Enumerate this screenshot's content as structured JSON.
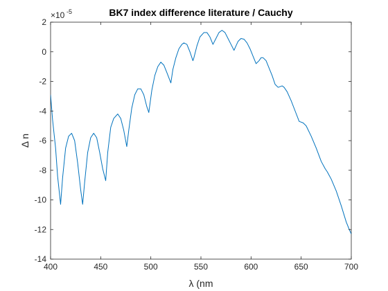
{
  "chart_data": {
    "type": "line",
    "title": "BK7 index difference literature / Cauchy",
    "xlabel": "λ (nm",
    "ylabel": "Δ n",
    "y_exponent": "-5",
    "xlim": [
      400,
      700
    ],
    "ylim": [
      -14,
      2
    ],
    "xticks": [
      "400",
      "450",
      "500",
      "550",
      "600",
      "650",
      "700"
    ],
    "yticks": [
      "2",
      "0",
      "-2",
      "-4",
      "-6",
      "-8",
      "-10",
      "-12",
      "-14"
    ],
    "grid": false,
    "series_color": "#0072BD",
    "series": [
      {
        "x": [
          400,
          402,
          405,
          407,
          410,
          412,
          415,
          418,
          421,
          424,
          427,
          430,
          432,
          434,
          437,
          440,
          443,
          446,
          449,
          452,
          455,
          457,
          460,
          463,
          467,
          470,
          473,
          476,
          478,
          481,
          484,
          487,
          490,
          493,
          496,
          498,
          501,
          504,
          507,
          510,
          513,
          516,
          520,
          522,
          525,
          528,
          531,
          533,
          536,
          539,
          542,
          543,
          546,
          549,
          553,
          556,
          559,
          562,
          565,
          568,
          571,
          574,
          577,
          580,
          583,
          585,
          587,
          590,
          593,
          596,
          599,
          602,
          605,
          608,
          610,
          612,
          615,
          618,
          621,
          624,
          627,
          631,
          633,
          636,
          640,
          644,
          648,
          652,
          655,
          660,
          665,
          670,
          674,
          676,
          680,
          685,
          690,
          695,
          698,
          700
        ],
        "values": [
          -2.9,
          -4.6,
          -6.5,
          -8.4,
          -10.3,
          -8.5,
          -6.5,
          -5.7,
          -5.5,
          -6.0,
          -7.5,
          -9.3,
          -10.3,
          -8.8,
          -6.8,
          -5.8,
          -5.5,
          -5.8,
          -6.8,
          -7.9,
          -8.7,
          -6.8,
          -5.1,
          -4.5,
          -4.2,
          -4.5,
          -5.3,
          -6.4,
          -5.3,
          -3.8,
          -2.9,
          -2.5,
          -2.5,
          -2.9,
          -3.7,
          -4.1,
          -2.6,
          -1.6,
          -1.0,
          -0.7,
          -0.9,
          -1.4,
          -2.1,
          -1.2,
          -0.4,
          0.2,
          0.5,
          0.6,
          0.5,
          0.0,
          -0.6,
          -0.4,
          0.4,
          1.0,
          1.3,
          1.3,
          1.0,
          0.5,
          0.9,
          1.3,
          1.45,
          1.3,
          0.9,
          0.5,
          0.1,
          0.4,
          0.7,
          0.9,
          0.85,
          0.6,
          0.2,
          -0.3,
          -0.8,
          -0.6,
          -0.4,
          -0.4,
          -0.6,
          -1.1,
          -1.6,
          -2.2,
          -2.4,
          -2.3,
          -2.4,
          -2.7,
          -3.3,
          -4.0,
          -4.7,
          -4.8,
          -5.0,
          -5.7,
          -6.5,
          -7.4,
          -7.9,
          -8.1,
          -8.6,
          -9.4,
          -10.4,
          -11.5,
          -12.0,
          -12.3
        ]
      }
    ]
  }
}
